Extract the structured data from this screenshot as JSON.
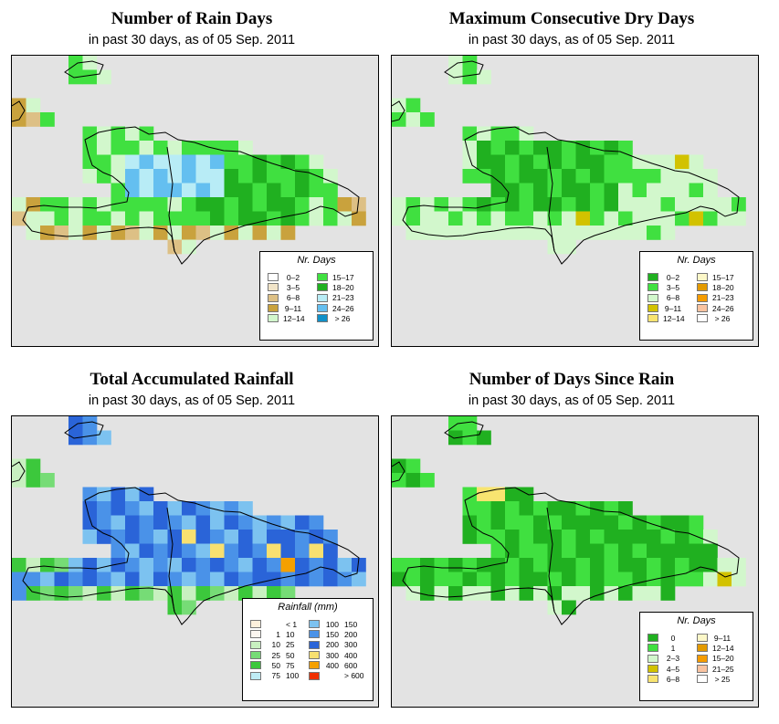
{
  "panels": [
    {
      "id": "rain-days",
      "title": "Number of Rain Days",
      "subtitle": "in past 30 days, as of  05 Sep. 2011",
      "legend": {
        "title": "Nr. Days",
        "columns": [
          [
            {
              "label": "0–2",
              "color": "#ffffff"
            },
            {
              "label": "3–5",
              "color": "#f1e4c8"
            },
            {
              "label": "6–8",
              "color": "#ddc085"
            },
            {
              "label": "9–11",
              "color": "#c9a23d"
            },
            {
              "label": "12–14",
              "color": "#d2f7cc"
            }
          ],
          [
            {
              "label": "15–17",
              "color": "#40e040"
            },
            {
              "label": "18–20",
              "color": "#20b020"
            },
            {
              "label": "21–23",
              "color": "#b8ecf6"
            },
            {
              "label": "24–26",
              "color": "#64bff0"
            },
            {
              "label": "> 26",
              "color": "#1090c8"
            }
          ]
        ]
      }
    },
    {
      "id": "dry-days",
      "title": "Maximum Consecutive Dry Days",
      "subtitle": "in past 30 days, as of  05 Sep. 2011",
      "legend": {
        "title": "Nr. Days",
        "columns": [
          [
            {
              "label": "0–2",
              "color": "#20b020"
            },
            {
              "label": "3–5",
              "color": "#40e040"
            },
            {
              "label": "6–8",
              "color": "#d2f7cc"
            },
            {
              "label": "9–11",
              "color": "#d2c200"
            },
            {
              "label": "12–14",
              "color": "#f8e470"
            }
          ],
          [
            {
              "label": "15–17",
              "color": "#fcf7c8"
            },
            {
              "label": "18–20",
              "color": "#e39a00"
            },
            {
              "label": "21–23",
              "color": "#f59c00"
            },
            {
              "label": "24–26",
              "color": "#f9c3a0"
            },
            {
              "label": "> 26",
              "color": "#ffffff"
            }
          ]
        ]
      }
    },
    {
      "id": "rainfall",
      "title": "Total Accumulated Rainfall",
      "subtitle": "in past 30 days, as of  05 Sep. 2011",
      "legend": {
        "title": "Rainfall (mm)",
        "columns": [
          [
            {
              "lo": "",
              "hi": "< 1",
              "color": "#fcf0dc"
            },
            {
              "lo": "1",
              "hi": "10",
              "color": "#fbf6f0"
            },
            {
              "lo": "10",
              "hi": "25",
              "color": "#c8f0c0"
            },
            {
              "lo": "25",
              "hi": "50",
              "color": "#76dc76"
            },
            {
              "lo": "50",
              "hi": "75",
              "color": "#3cc83c"
            },
            {
              "lo": "75",
              "hi": "100",
              "color": "#bfecf4"
            }
          ],
          [
            {
              "lo": "100",
              "hi": "150",
              "color": "#7cc2f0"
            },
            {
              "lo": "150",
              "hi": "200",
              "color": "#4a92e8"
            },
            {
              "lo": "200",
              "hi": "300",
              "color": "#2a64d8"
            },
            {
              "lo": "300",
              "hi": "400",
              "color": "#f8e070"
            },
            {
              "lo": "400",
              "hi": "600",
              "color": "#f5a000"
            },
            {
              "lo": "",
              "hi": "> 600",
              "color": "#f03000"
            }
          ]
        ]
      }
    },
    {
      "id": "since-rain",
      "title": "Number of Days Since Rain",
      "subtitle": "in past 30 days, as of  05 Sep. 2011",
      "legend": {
        "title": "Nr. Days",
        "columns": [
          [
            {
              "label": "0",
              "color": "#20b020"
            },
            {
              "label": "1",
              "color": "#40e040"
            },
            {
              "label": "2–3",
              "color": "#d2f7cc"
            },
            {
              "label": "4–5",
              "color": "#d2c200"
            },
            {
              "label": "6–8",
              "color": "#f8e470"
            }
          ],
          [
            {
              "label": "9–11",
              "color": "#fcf7c8"
            },
            {
              "label": "12–14",
              "color": "#e39a00"
            },
            {
              "label": "15–20",
              "color": "#f59c00"
            },
            {
              "label": "21–25",
              "color": "#f9c3a0"
            },
            {
              "label": "> 25",
              "color": "#ffffff"
            }
          ]
        ]
      }
    }
  ]
}
